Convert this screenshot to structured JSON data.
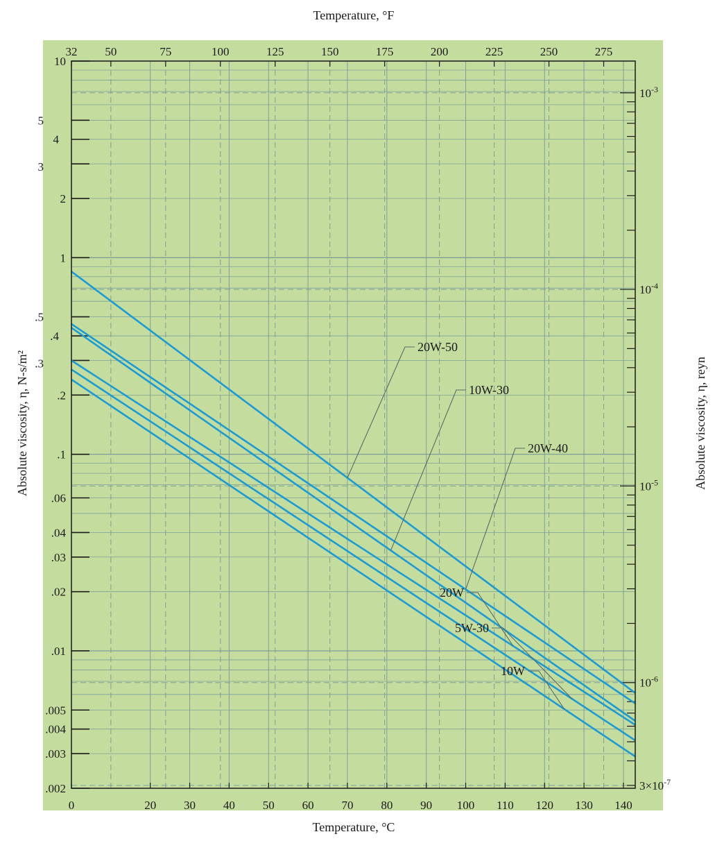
{
  "chart_data": {
    "type": "line",
    "xlabel": "Temperature, °C",
    "x2label": "Temperature, °F",
    "ylabel": "Absolute viscosity, η, N-s/m²",
    "y2label": "Absolute viscosity, η, reyn",
    "xlim": [
      0,
      143
    ],
    "ylim": [
      0.002,
      10
    ],
    "yscale": "log",
    "grid": true,
    "x_ticks": [
      "0",
      "20",
      "30",
      "40",
      "50",
      "60",
      "70",
      "80",
      "90",
      "100",
      "110",
      "120",
      "130",
      "140"
    ],
    "x_tick_values": [
      0,
      20,
      30,
      40,
      50,
      60,
      70,
      80,
      90,
      100,
      110,
      120,
      130,
      140
    ],
    "x2_ticks": [
      "32",
      "50",
      "75",
      "100",
      "125",
      "150",
      "175",
      "200",
      "225",
      "250",
      "275"
    ],
    "x2_tick_values_F": [
      32,
      50,
      75,
      100,
      125,
      150,
      175,
      200,
      225,
      250,
      275
    ],
    "y_ticks": [
      "10",
      "5",
      "4",
      "3",
      "2",
      "1",
      ".5",
      ".4",
      ".3",
      ".2",
      ".1",
      ".06",
      ".04",
      ".03",
      ".02",
      ".01",
      ".005",
      ".004",
      ".003",
      ".002"
    ],
    "y_tick_values": [
      10,
      5,
      4,
      3,
      2,
      1,
      0.5,
      0.4,
      0.3,
      0.2,
      0.1,
      0.06,
      0.04,
      0.03,
      0.02,
      0.01,
      0.005,
      0.004,
      0.003,
      0.002
    ],
    "y2_ticks": [
      {
        "base": "10",
        "exp": "-3",
        "value_reyn": 0.001
      },
      {
        "base": "10",
        "exp": "-4",
        "value_reyn": 0.0001
      },
      {
        "base": "10",
        "exp": "-5",
        "value_reyn": 1e-05
      },
      {
        "base": "10",
        "exp": "-6",
        "value_reyn": 1e-06
      },
      {
        "base": "3×10",
        "exp": "-7",
        "value_reyn": 3e-07
      }
    ],
    "series": [
      {
        "name": "20W-50",
        "x": [
          0,
          143
        ],
        "y": [
          0.85,
          0.0061
        ],
        "label_at_x": 70,
        "color": "#1a9bd4"
      },
      {
        "name": "20W-40",
        "x": [
          0,
          143
        ],
        "y": [
          0.46,
          0.0054
        ],
        "label_at_x": 100,
        "color": "#1a9bd4"
      },
      {
        "name": "10W-30",
        "x": [
          0,
          143
        ],
        "y": [
          0.44,
          0.0044
        ],
        "label_at_x": 81,
        "color": "#1a9bd4"
      },
      {
        "name": "20W",
        "x": [
          0,
          143
        ],
        "y": [
          0.3,
          0.0042
        ],
        "label_at_x": 112,
        "color": "#1a9bd4"
      },
      {
        "name": "5W-30",
        "x": [
          0,
          143
        ],
        "y": [
          0.27,
          0.0035
        ],
        "label_at_x": 127,
        "color": "#1a9bd4"
      },
      {
        "name": "10W",
        "x": [
          0,
          143
        ],
        "y": [
          0.24,
          0.0029
        ],
        "label_at_x": 125,
        "color": "#1a9bd4"
      }
    ],
    "colors": {
      "background": "#c5dc9f",
      "grid": "#7f9f96",
      "line": "#1a9bd4",
      "text": "#1a1a1a"
    }
  }
}
